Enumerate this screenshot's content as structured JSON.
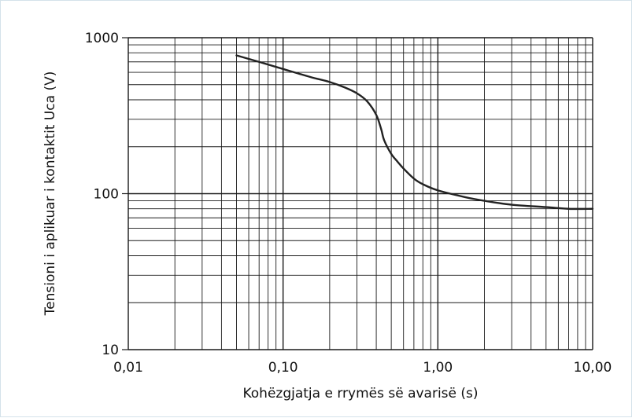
{
  "chart_data": {
    "type": "line",
    "title": "",
    "xlabel": "Kohëzgjatja e rrymës së avarisë (s)",
    "ylabel": "Tensioni i aplikuar i kontaktit Uca (V)",
    "x_scale": "log",
    "y_scale": "log",
    "xlim": [
      0.01,
      10
    ],
    "ylim": [
      10,
      1000
    ],
    "grid": true,
    "x_ticks": [
      {
        "value": 0.01,
        "label": "0,01"
      },
      {
        "value": 0.1,
        "label": "0,10"
      },
      {
        "value": 1,
        "label": "1,00"
      },
      {
        "value": 10,
        "label": "10,00"
      }
    ],
    "y_ticks": [
      {
        "value": 10,
        "label": "10"
      },
      {
        "value": 100,
        "label": "100"
      },
      {
        "value": 1000,
        "label": "1000"
      }
    ],
    "series": [
      {
        "x": [
          0.05,
          0.07,
          0.1,
          0.15,
          0.2,
          0.25,
          0.3,
          0.35,
          0.4,
          0.43,
          0.45,
          0.5,
          0.55,
          0.6,
          0.7,
          0.8,
          1.0,
          1.5,
          2.0,
          3.0,
          5.0,
          7.0,
          10.0
        ],
        "values": [
          770,
          700,
          630,
          560,
          520,
          480,
          440,
          390,
          320,
          260,
          220,
          180,
          160,
          145,
          125,
          115,
          105,
          95,
          90,
          85,
          82,
          80,
          80
        ]
      }
    ]
  },
  "colors": {
    "curve": "#222222",
    "grid": "#1a1a1a",
    "frame_border": "#d4e2ea"
  }
}
